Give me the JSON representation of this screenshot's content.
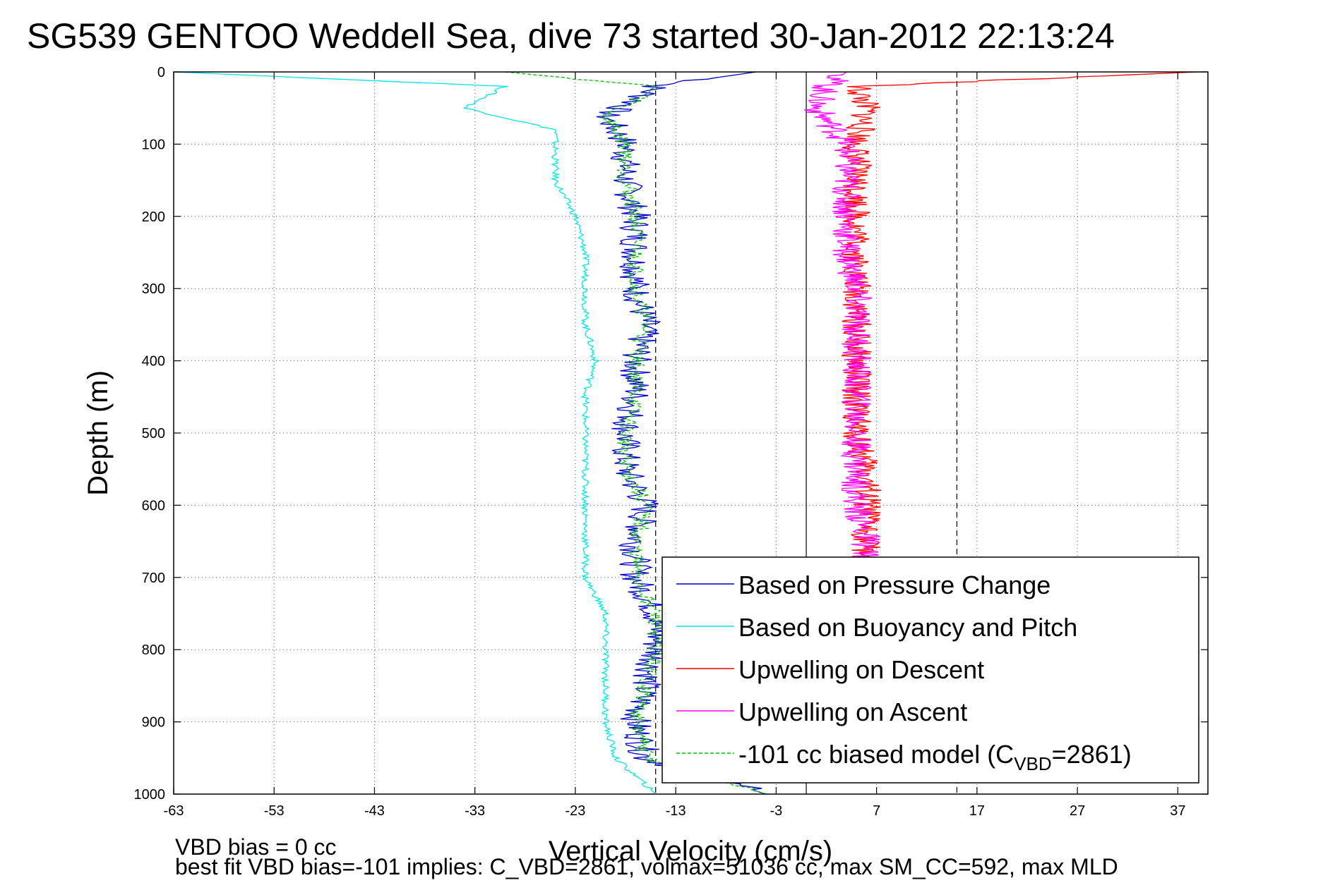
{
  "chart_data": {
    "type": "line",
    "title": "SG539 GENTOO Weddell Sea, dive 73 started 30-Jan-2012 22:13:24",
    "xlabel": "Vertical Velocity (cm/s)",
    "ylabel": "Depth (m)",
    "xlim": [
      -63,
      40
    ],
    "ylim": [
      0,
      1000
    ],
    "y_reversed": true,
    "xticks": [
      "-63",
      "-53",
      "-43",
      "-33",
      "-23",
      "-13",
      "-3",
      "7",
      "17",
      "27",
      "37"
    ],
    "yticks": [
      "0",
      "100",
      "200",
      "300",
      "400",
      "500",
      "600",
      "700",
      "800",
      "900",
      "1000"
    ],
    "grid": true,
    "legend_position": "bottom-right",
    "series": [
      {
        "name": "Based on Pressure Change",
        "color": "#0000cc",
        "depth": [
          0,
          20,
          40,
          60,
          80,
          100,
          150,
          200,
          250,
          300,
          350,
          400,
          450,
          500,
          550,
          600,
          650,
          700,
          750,
          800,
          850,
          900,
          950,
          1000
        ],
        "values": [
          -5,
          -15,
          -17,
          -20,
          -19,
          -18,
          -18,
          -17,
          -17,
          -17,
          -16,
          -17,
          -17,
          -18,
          -18,
          -16,
          -17,
          -17,
          -15,
          -15,
          -16,
          -17,
          -16,
          -4
        ]
      },
      {
        "name": "Based on Buoyancy and Pitch",
        "color": "#00e5e5",
        "depth": [
          0,
          20,
          50,
          80,
          100,
          150,
          200,
          250,
          300,
          350,
          400,
          450,
          500,
          550,
          600,
          650,
          700,
          750,
          800,
          850,
          900,
          950,
          1000
        ],
        "values": [
          -63,
          -30,
          -34,
          -25,
          -25,
          -25,
          -23,
          -22,
          -22,
          -22,
          -21,
          -22,
          -22,
          -22,
          -22,
          -22,
          -22,
          -20,
          -20,
          -20,
          -20,
          -19,
          -15
        ]
      },
      {
        "name": "Upwelling on Descent",
        "color": "#ff0000",
        "depth": [
          0,
          20,
          50,
          100,
          150,
          200,
          250,
          300,
          350,
          400,
          450,
          500,
          550,
          600,
          650,
          680
        ],
        "values": [
          39,
          5,
          6,
          5,
          5,
          5,
          5,
          5,
          5,
          5,
          5,
          5,
          6,
          6,
          6,
          6
        ]
      },
      {
        "name": "Upwelling on Ascent",
        "color": "#ff00ff",
        "depth": [
          0,
          20,
          50,
          100,
          150,
          200,
          250,
          300,
          350,
          400,
          450,
          500,
          550,
          600,
          650,
          680
        ],
        "values": [
          4,
          2,
          1,
          4,
          4,
          4,
          4,
          5,
          5,
          5,
          5,
          5,
          5,
          5,
          6,
          6
        ]
      },
      {
        "name": "-101 cc biased model (C",
        "name_sub": "VBD",
        "name_tail": "=2861)",
        "color": "#00bb00",
        "depth": [
          0,
          20,
          40,
          60,
          80,
          100,
          150,
          200,
          250,
          300,
          350,
          400,
          450,
          500,
          550,
          600,
          650,
          700,
          750,
          800,
          850,
          900,
          950,
          1000
        ],
        "values": [
          -30,
          -15,
          -17,
          -20,
          -19,
          -18,
          -18,
          -17,
          -17,
          -17,
          -16,
          -17,
          -17,
          -18,
          -18,
          -16,
          -17,
          -17,
          -15,
          -15,
          -16,
          -17,
          -16,
          -4
        ]
      }
    ],
    "reference_lines": [
      {
        "type": "vertical",
        "style": "dashed",
        "x": -15
      },
      {
        "type": "vertical",
        "style": "solid",
        "x": 0
      },
      {
        "type": "vertical",
        "style": "dashed",
        "x": 15
      }
    ],
    "annotations": {
      "line1": "VBD bias = 0 cc",
      "line2": "best fit VBD bias=-101 implies: C_VBD=2861, volmax=51036 cc, max SM_CC=592, max MLD"
    }
  }
}
